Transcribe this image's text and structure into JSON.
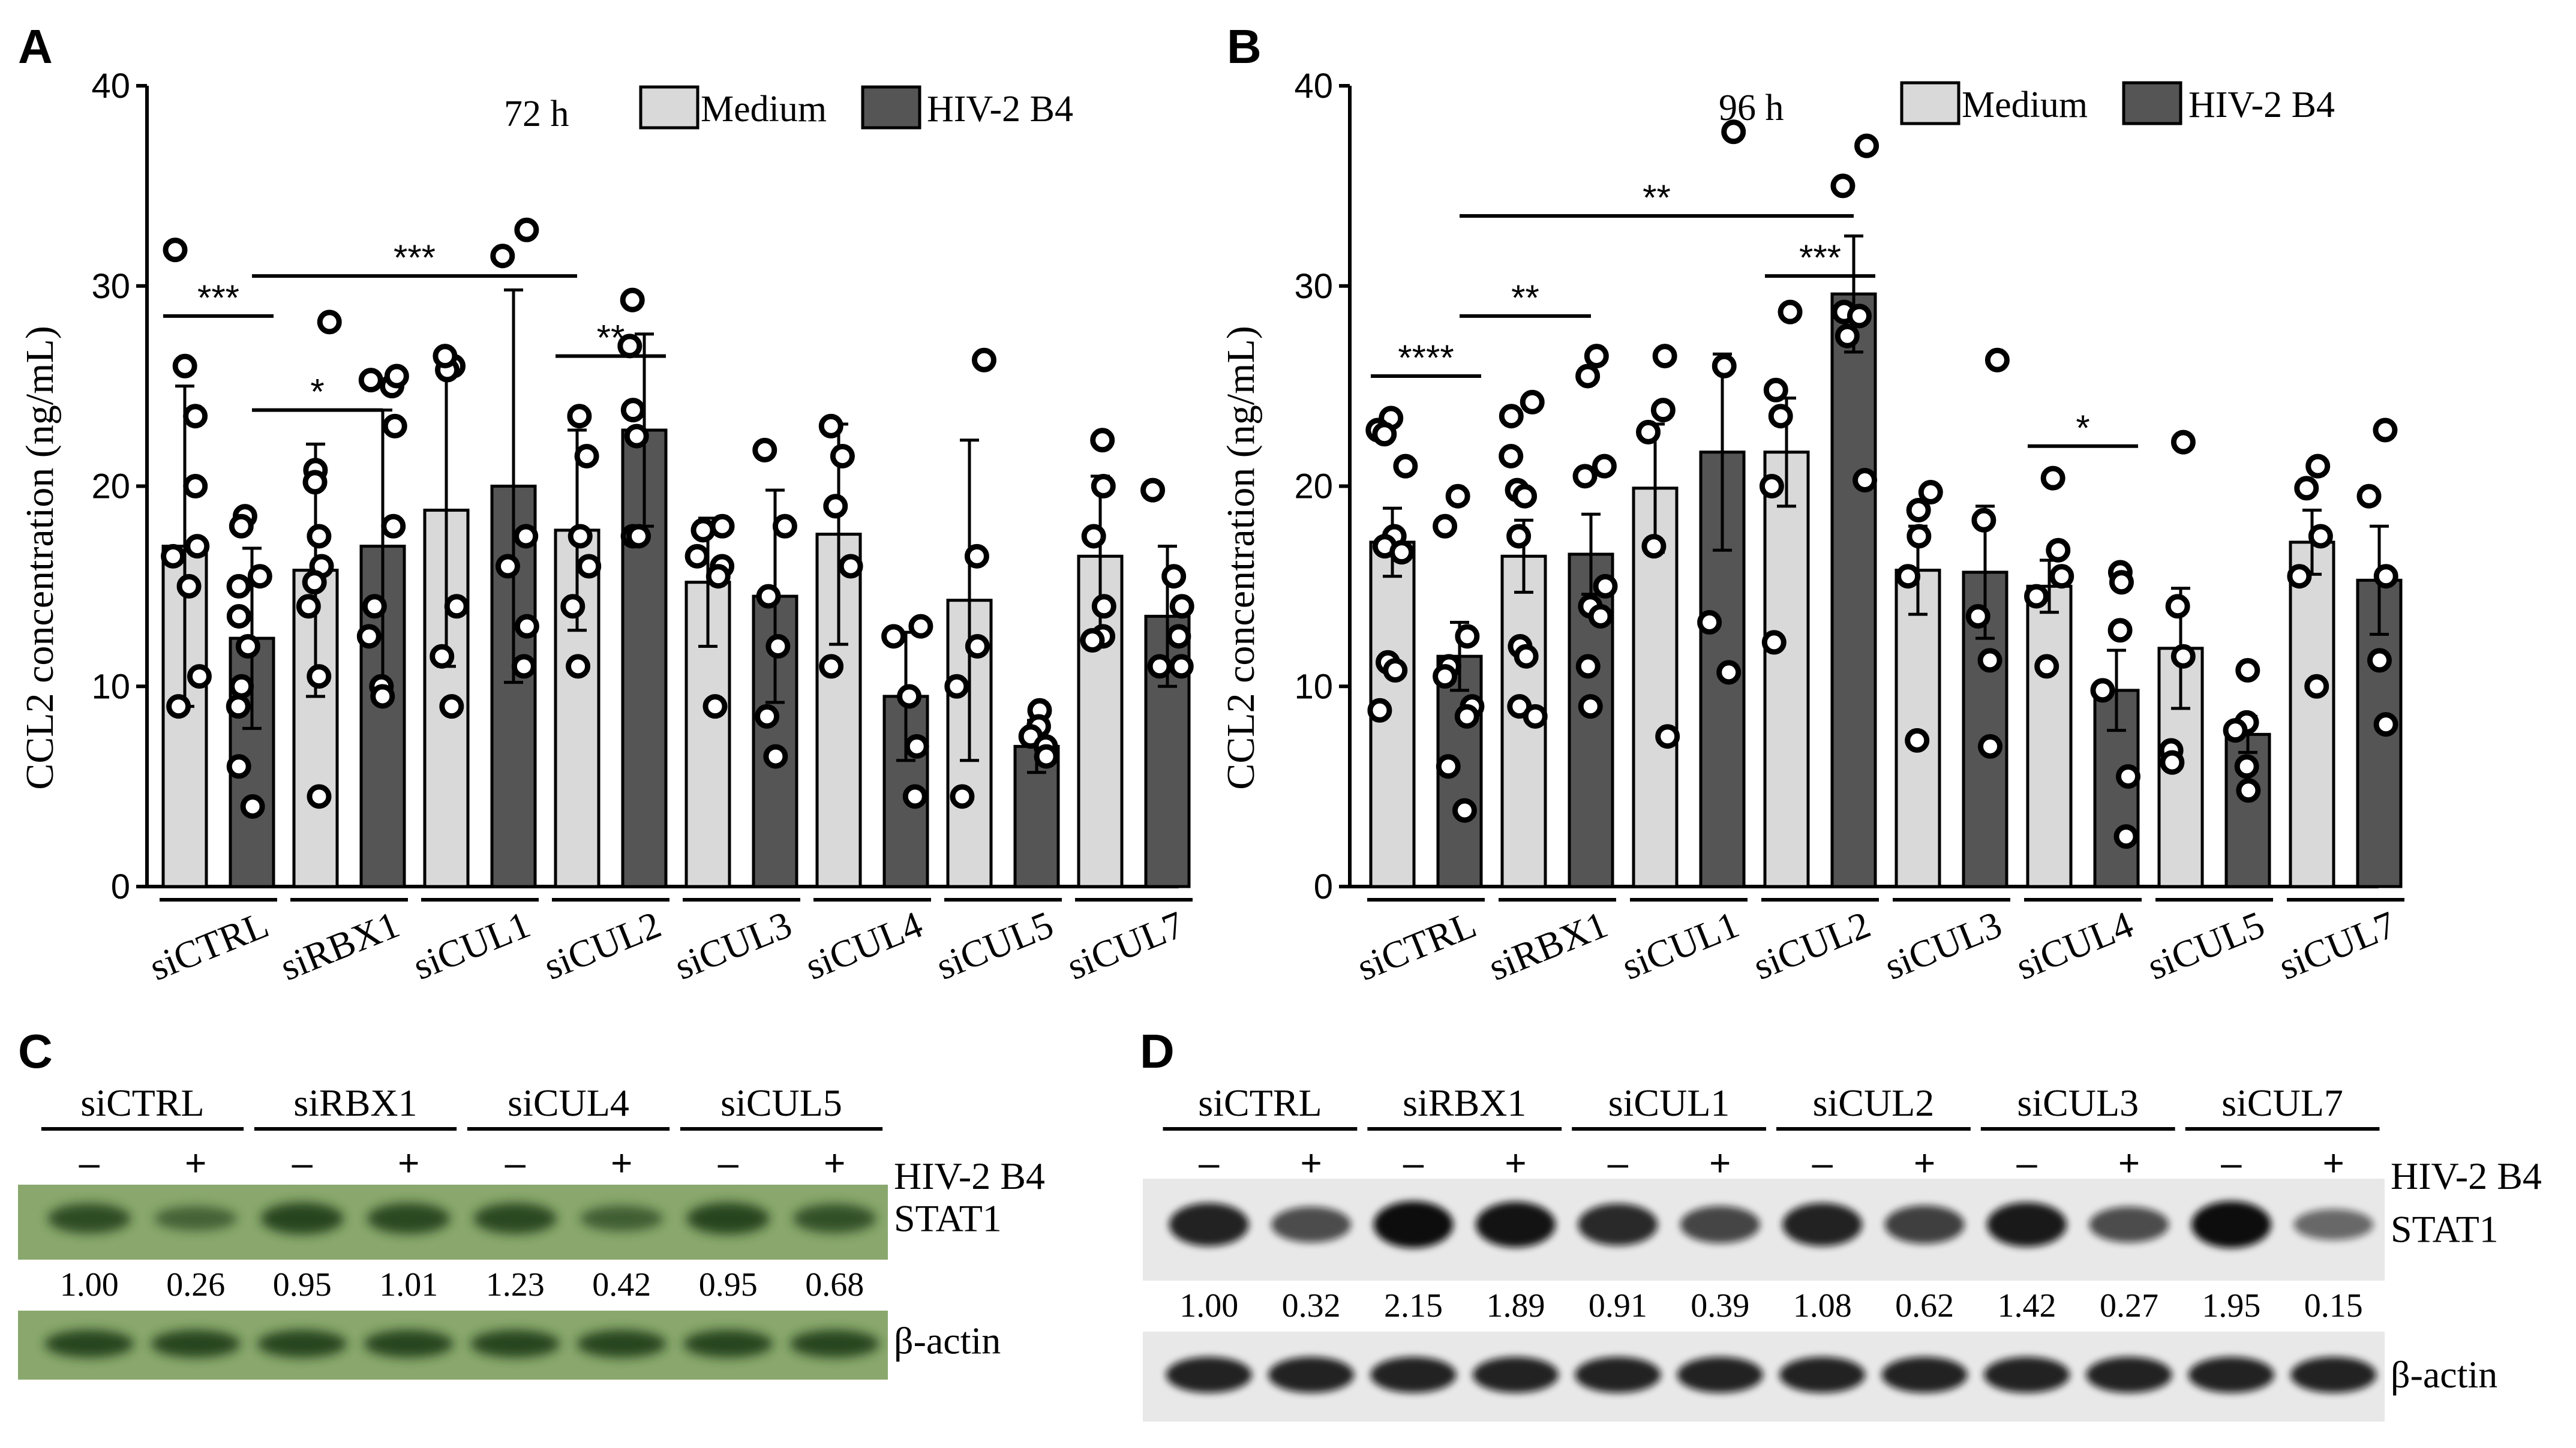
{
  "chart_data": [
    {
      "panel": "A",
      "type": "bar",
      "time_label": "72 h",
      "ylabel": "CCL2 concentration (ng/mL)",
      "ylim": [
        0,
        40
      ],
      "yticks": [
        "0",
        "10",
        "20",
        "30",
        "40"
      ],
      "categories": [
        "siCTRL",
        "siRBX1",
        "siCUL1",
        "siCUL2",
        "siCUL3",
        "siCUL4",
        "siCUL5",
        "siCUL7"
      ],
      "series": [
        {
          "name": "Medium",
          "color": "#d9d9d9",
          "values": [
            17.0,
            15.8,
            18.8,
            17.8,
            15.2,
            17.6,
            14.3,
            16.5
          ],
          "errors": [
            8.0,
            6.3,
            7.8,
            5.0,
            3.2,
            5.5,
            8.0,
            4.0
          ],
          "points": [
            [
              31.8,
              26.0,
              23.5,
              20.0,
              17.0,
              16.5,
              15.0,
              10.5,
              9.0
            ],
            [
              28.2,
              20.8,
              20.2,
              17.5,
              16.0,
              15.2,
              14.0,
              10.5,
              4.5
            ],
            [
              26.0,
              25.8,
              26.5,
              14.0,
              11.5,
              9.0
            ],
            [
              23.5,
              21.5,
              17.5,
              16.0,
              14.0,
              11.0
            ],
            [
              17.8,
              18.0,
              16.5,
              16.0,
              15.5,
              9.0
            ],
            [
              23.0,
              21.5,
              19.0,
              16.0,
              11.0
            ],
            [
              26.3,
              16.5,
              12.0,
              10.0,
              4.5
            ],
            [
              22.3,
              20.0,
              17.5,
              14.0,
              12.5,
              12.3
            ]
          ]
        },
        {
          "name": "HIV-2 B4",
          "color": "#555555",
          "values": [
            12.4,
            17.0,
            20.0,
            22.8,
            14.5,
            9.5,
            7.0,
            13.5
          ],
          "errors": [
            4.5,
            6.8,
            9.8,
            4.8,
            5.3,
            3.2,
            1.3,
            3.5
          ],
          "points": [
            [
              18.5,
              18.0,
              15.5,
              15.0,
              13.5,
              12.0,
              10.0,
              9.0,
              6.0,
              4.0
            ],
            [
              25.3,
              25.0,
              25.5,
              23.0,
              18.0,
              14.0,
              12.5,
              10.0,
              9.5
            ],
            [
              32.8,
              31.5,
              17.5,
              16.0,
              13.0,
              11.0
            ],
            [
              29.3,
              27.0,
              23.8,
              22.5,
              17.5,
              17.5
            ],
            [
              21.8,
              18.0,
              14.5,
              12.0,
              8.5,
              6.5
            ],
            [
              13.0,
              12.5,
              9.5,
              7.0,
              4.5
            ],
            [
              8.8,
              8.0,
              7.5,
              7.0,
              6.5
            ],
            [
              19.8,
              15.5,
              14.0,
              12.5,
              11.0,
              11.0
            ]
          ]
        }
      ],
      "significance": [
        {
          "label": "***",
          "from": [
            0,
            0
          ],
          "to": [
            0,
            1
          ],
          "y": 28.5
        },
        {
          "label": "***",
          "from": [
            0,
            1
          ],
          "to": [
            3,
            0
          ],
          "y": 30.5
        },
        {
          "label": "*",
          "from": [
            0,
            1
          ],
          "to": [
            1,
            1
          ],
          "y": 23.8
        },
        {
          "label": "**",
          "from": [
            3,
            0
          ],
          "to": [
            3,
            1
          ],
          "y": 26.5
        }
      ]
    },
    {
      "panel": "B",
      "type": "bar",
      "time_label": "96 h",
      "ylabel": "CCL2 concentration (ng/mL)",
      "ylim": [
        0,
        40
      ],
      "yticks": [
        "0",
        "10",
        "20",
        "30",
        "40"
      ],
      "categories": [
        "siCTRL",
        "siRBX1",
        "siCUL1",
        "siCUL2",
        "siCUL3",
        "siCUL4",
        "siCUL5",
        "siCUL7"
      ],
      "series": [
        {
          "name": "Medium",
          "color": "#d9d9d9",
          "values": [
            17.2,
            16.5,
            19.9,
            21.7,
            15.8,
            15.0,
            11.9,
            17.2
          ],
          "errors": [
            1.7,
            1.8,
            3.2,
            2.7,
            2.2,
            1.3,
            3.0,
            1.6
          ],
          "points": [
            [
              23.4,
              22.8,
              22.6,
              21.0,
              17.5,
              17.0,
              16.7,
              11.2,
              10.8,
              8.8
            ],
            [
              24.2,
              23.5,
              21.5,
              19.8,
              19.5,
              17.5,
              12.0,
              11.5,
              9.0,
              8.5
            ],
            [
              26.5,
              23.8,
              22.7,
              17.0,
              7.5
            ],
            [
              28.7,
              24.8,
              23.5,
              20.0,
              12.2
            ],
            [
              19.7,
              18.8,
              17.5,
              15.5,
              7.3
            ],
            [
              20.4,
              16.8,
              15.5,
              14.5,
              11.0
            ],
            [
              22.2,
              14.0,
              11.5,
              6.8,
              6.2
            ],
            [
              21.0,
              19.9,
              17.5,
              15.5,
              10.0
            ]
          ]
        },
        {
          "name": "HIV-2 B4",
          "color": "#555555",
          "values": [
            11.5,
            16.6,
            21.7,
            29.6,
            15.7,
            9.8,
            7.6,
            15.3
          ],
          "errors": [
            1.7,
            2.0,
            4.9,
            2.9,
            3.3,
            2.0,
            0.9,
            2.7
          ],
          "points": [
            [
              19.5,
              18.0,
              12.5,
              11.0,
              10.5,
              9.0,
              8.5,
              6.0,
              3.8
            ],
            [
              26.5,
              25.5,
              21.0,
              20.5,
              15.0,
              14.0,
              13.5,
              11.0,
              9.0
            ],
            [
              37.7,
              26.0,
              13.2,
              10.7
            ],
            [
              37.0,
              35.0,
              28.7,
              28.5,
              27.5,
              20.3
            ],
            [
              26.3,
              18.3,
              13.5,
              11.3,
              7.0
            ],
            [
              15.7,
              15.2,
              12.8,
              9.8,
              5.5,
              2.5
            ],
            [
              10.8,
              8.2,
              7.8,
              6.0,
              4.8
            ],
            [
              22.8,
              19.5,
              15.5,
              11.3,
              8.1
            ]
          ]
        }
      ],
      "significance": [
        {
          "label": "****",
          "from": [
            0,
            0
          ],
          "to": [
            0,
            1
          ],
          "y": 25.5
        },
        {
          "label": "**",
          "from": [
            0,
            1
          ],
          "to": [
            1,
            1
          ],
          "y": 28.5
        },
        {
          "label": "**",
          "from": [
            0,
            1
          ],
          "to": [
            3,
            1
          ],
          "y": 33.5
        },
        {
          "label": "***",
          "from": [
            3,
            0
          ],
          "to": [
            3,
            1
          ],
          "y": 30.5
        },
        {
          "label": "*",
          "from": [
            5,
            0
          ],
          "to": [
            5,
            1
          ],
          "y": 22.0
        }
      ]
    }
  ],
  "blot_c": {
    "letter": "C",
    "lanes": [
      "siCTRL",
      "siRBX1",
      "siCUL4",
      "siCUL5"
    ],
    "signs": [
      "–",
      "+",
      "–",
      "+",
      "–",
      "+",
      "–",
      "+"
    ],
    "treatment_label": "HIV-2 B4",
    "protein_label": "STAT1",
    "loading_label": "β-actin",
    "values": [
      "1.00",
      "0.26",
      "0.95",
      "1.01",
      "1.23",
      "0.42",
      "0.95",
      "0.68"
    ],
    "stat1_intensity": [
      0.75,
      0.45,
      0.85,
      0.8,
      0.8,
      0.5,
      0.85,
      0.7
    ]
  },
  "blot_d": {
    "letter": "D",
    "lanes": [
      "siCTRL",
      "siRBX1",
      "siCUL1",
      "siCUL2",
      "siCUL3",
      "siCUL7"
    ],
    "signs": [
      "–",
      "+",
      "–",
      "+",
      "–",
      "+",
      "–",
      "+",
      "–",
      "+",
      "–",
      "+"
    ],
    "treatment_label": "HIV-2 B4",
    "protein_label": "STAT1",
    "loading_label": "β-actin",
    "values": [
      "1.00",
      "0.32",
      "2.15",
      "1.89",
      "0.91",
      "0.39",
      "1.08",
      "0.62",
      "1.42",
      "0.27",
      "1.95",
      "0.15"
    ],
    "stat1_intensity": [
      0.85,
      0.55,
      1.0,
      0.95,
      0.8,
      0.6,
      0.85,
      0.65,
      0.9,
      0.55,
      1.0,
      0.35
    ]
  }
}
